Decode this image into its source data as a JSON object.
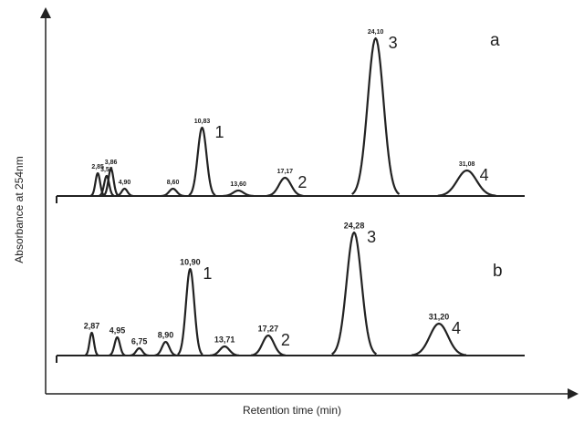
{
  "chart_data": {
    "type": "chromatogram",
    "x_label": "Retention time (min)",
    "y_label": "Absorbance at 254nm",
    "traces": [
      {
        "name": "a",
        "xlim": [
          -0.3,
          35.5
        ],
        "ylim": [
          0,
          180
        ],
        "peaks": [
          {
            "x": 2.85,
            "label": "2,85",
            "height": 25
          },
          {
            "x": 3.53,
            "label": "3,53",
            "height": 22
          },
          {
            "x": 3.86,
            "label": "3,86",
            "height": 30
          },
          {
            "x": 4.9,
            "label": "4,90",
            "height": 8
          },
          {
            "x": 8.6,
            "label": "8,60",
            "height": 8
          },
          {
            "x": 10.83,
            "label": "10,83",
            "height": 75,
            "peak": "1"
          },
          {
            "x": 13.6,
            "label": "13,60",
            "height": 6
          },
          {
            "x": 17.17,
            "label": "17,17",
            "height": 20,
            "peak": "2"
          },
          {
            "x": 24.1,
            "label": "24,10",
            "height": 173,
            "peak": "3"
          },
          {
            "x": 31.08,
            "label": "31,08",
            "height": 28,
            "peak": "4"
          }
        ]
      },
      {
        "name": "b",
        "xlim": [
          0,
          38.2
        ],
        "ylim": [
          0,
          180
        ],
        "peaks": [
          {
            "x": 2.87,
            "label": "2,87",
            "height": 25
          },
          {
            "x": 4.95,
            "label": "4,95",
            "height": 20
          },
          {
            "x": 6.75,
            "label": "6,75",
            "height": 8
          },
          {
            "x": 8.9,
            "label": "8,90",
            "height": 15
          },
          {
            "x": 10.9,
            "label": "10,90",
            "height": 95,
            "peak": "1"
          },
          {
            "x": 13.71,
            "label": "13,71",
            "height": 10
          },
          {
            "x": 17.27,
            "label": "17,27",
            "height": 22,
            "peak": "2"
          },
          {
            "x": 24.28,
            "label": "24,28",
            "height": 135,
            "peak": "3"
          },
          {
            "x": 31.2,
            "label": "31,20",
            "height": 35,
            "peak": "4"
          }
        ]
      }
    ]
  }
}
